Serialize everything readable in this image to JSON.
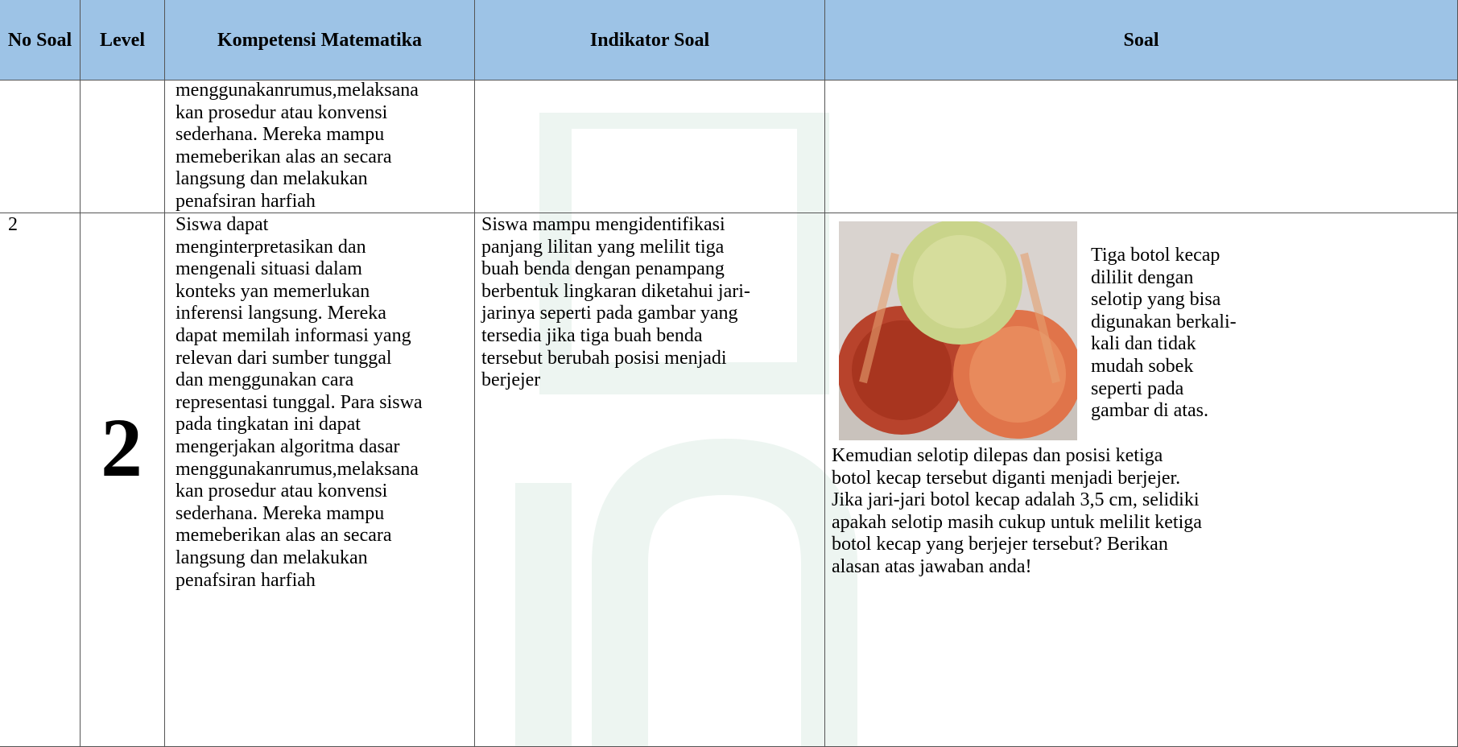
{
  "header": {
    "columns": [
      "No Soal",
      "Level",
      "Kompetensi Matematika",
      "Indikator Soal",
      "Soal"
    ]
  },
  "table": {
    "rows": [
      {
        "kompetensi": [
          "menggunakanrumus,melaksana",
          "kan prosedur atau konvensi",
          "sederhana. Mereka mampu",
          "memeberikan alas an secara",
          "langsung dan melakukan",
          "penafsiran harfiah"
        ]
      },
      {
        "no": "2",
        "level": "2",
        "kompetensi": [
          "Siswa dapat",
          "menginterpretasikan dan",
          "mengenali situasi dalam",
          "konteks yan memerlukan",
          "inferensi langsung. Mereka",
          "dapat memilah informasi yang",
          "relevan dari sumber tunggal",
          "dan menggunakan cara",
          "representasi tunggal. Para siswa",
          "pada tingkatan ini dapat",
          "mengerjakan algoritma dasar",
          "menggunakanrumus,melaksana",
          "kan prosedur atau konvensi",
          "sederhana. Mereka mampu",
          "memeberikan alas an secara",
          "langsung dan melakukan",
          "penafsiran harfiah"
        ],
        "indikator": [
          "Siswa mampu mengidentifikasi",
          "panjang  lilitan yang melilit tiga",
          "buah benda dengan  penampang",
          "berbentuk lingkaran diketahui jari-",
          "jarinya seperti pada gambar yang",
          "tersedia  jika tiga buah benda",
          "tersebut berubah  posisi menjadi",
          "berjejer"
        ],
        "soal": {
          "beside_image": [
            "Tiga botol kecap",
            "dililit dengan",
            "selotip yang bisa",
            "digunakan berkali-",
            "kali dan tidak",
            "mudah sobek",
            "seperti pada",
            "gambar di atas."
          ],
          "text": [
            "Kemudian  selotip dilepas dan  posisi ketiga",
            "botol kecap tersebut diganti menjadi berjejer.",
            "Jika jari-jari botol kecap adalah 3,5 cm, selidiki",
            "apakah selotip masih cukup untuk melilit ketiga",
            "botol kecap yang berjejer tersebut? Berikan",
            "alasan  atas jawaban anda!"
          ]
        }
      }
    ]
  }
}
